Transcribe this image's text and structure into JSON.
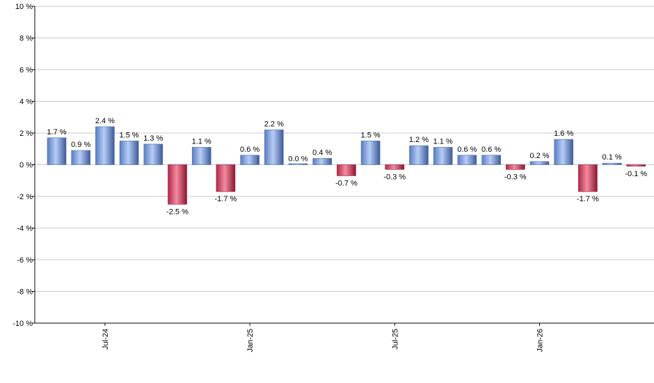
{
  "chart_data": {
    "type": "bar",
    "title": "",
    "xlabel": "",
    "ylabel": "",
    "ylim": [
      -10,
      10
    ],
    "y_ticks": [
      10,
      8,
      6,
      4,
      2,
      0,
      -2,
      -4,
      -6,
      -8,
      -10
    ],
    "y_tick_suffix": " %",
    "grid": true,
    "legend": "none",
    "x_tick_labels": [
      {
        "label": "Jul-24",
        "index": 2
      },
      {
        "label": "Jan-25",
        "index": 8
      },
      {
        "label": "Jul-25",
        "index": 14
      },
      {
        "label": "Jan-26",
        "index": 20
      }
    ],
    "values": [
      1.7,
      0.9,
      2.4,
      1.5,
      1.3,
      -2.5,
      1.1,
      -1.7,
      0.6,
      2.2,
      0.0,
      0.4,
      -0.7,
      1.5,
      -0.3,
      1.2,
      1.1,
      0.6,
      0.6,
      -0.3,
      0.2,
      1.6,
      -1.7,
      0.1,
      -0.1
    ],
    "value_labels": [
      "1.7 %",
      "0.9 %",
      "2.4 %",
      "1.5 %",
      "1.3 %",
      "-2.5 %",
      "1.1 %",
      "-1.7 %",
      "0.6 %",
      "2.2 %",
      "0.0 %",
      "0.4 %",
      "-0.7 %",
      "1.5 %",
      "-0.3 %",
      "1.2 %",
      "1.1 %",
      "0.6 %",
      "0.6 %",
      "-0.3 %",
      "0.2 %",
      "1.6 %",
      "-1.7 %",
      "0.1 %",
      "-0.1 %"
    ],
    "show_labels": [
      true,
      true,
      true,
      true,
      true,
      true,
      true,
      true,
      true,
      true,
      true,
      true,
      true,
      true,
      true,
      true,
      true,
      true,
      true,
      true,
      true,
      true,
      true,
      true,
      true
    ],
    "colors": {
      "positive_light": "#a9c2f0",
      "positive_dark": "#4e6fb0",
      "negative_light": "#f07890",
      "negative_dark": "#9a1c3a",
      "grid": "#c8c8c8",
      "axis": "#000000"
    }
  }
}
